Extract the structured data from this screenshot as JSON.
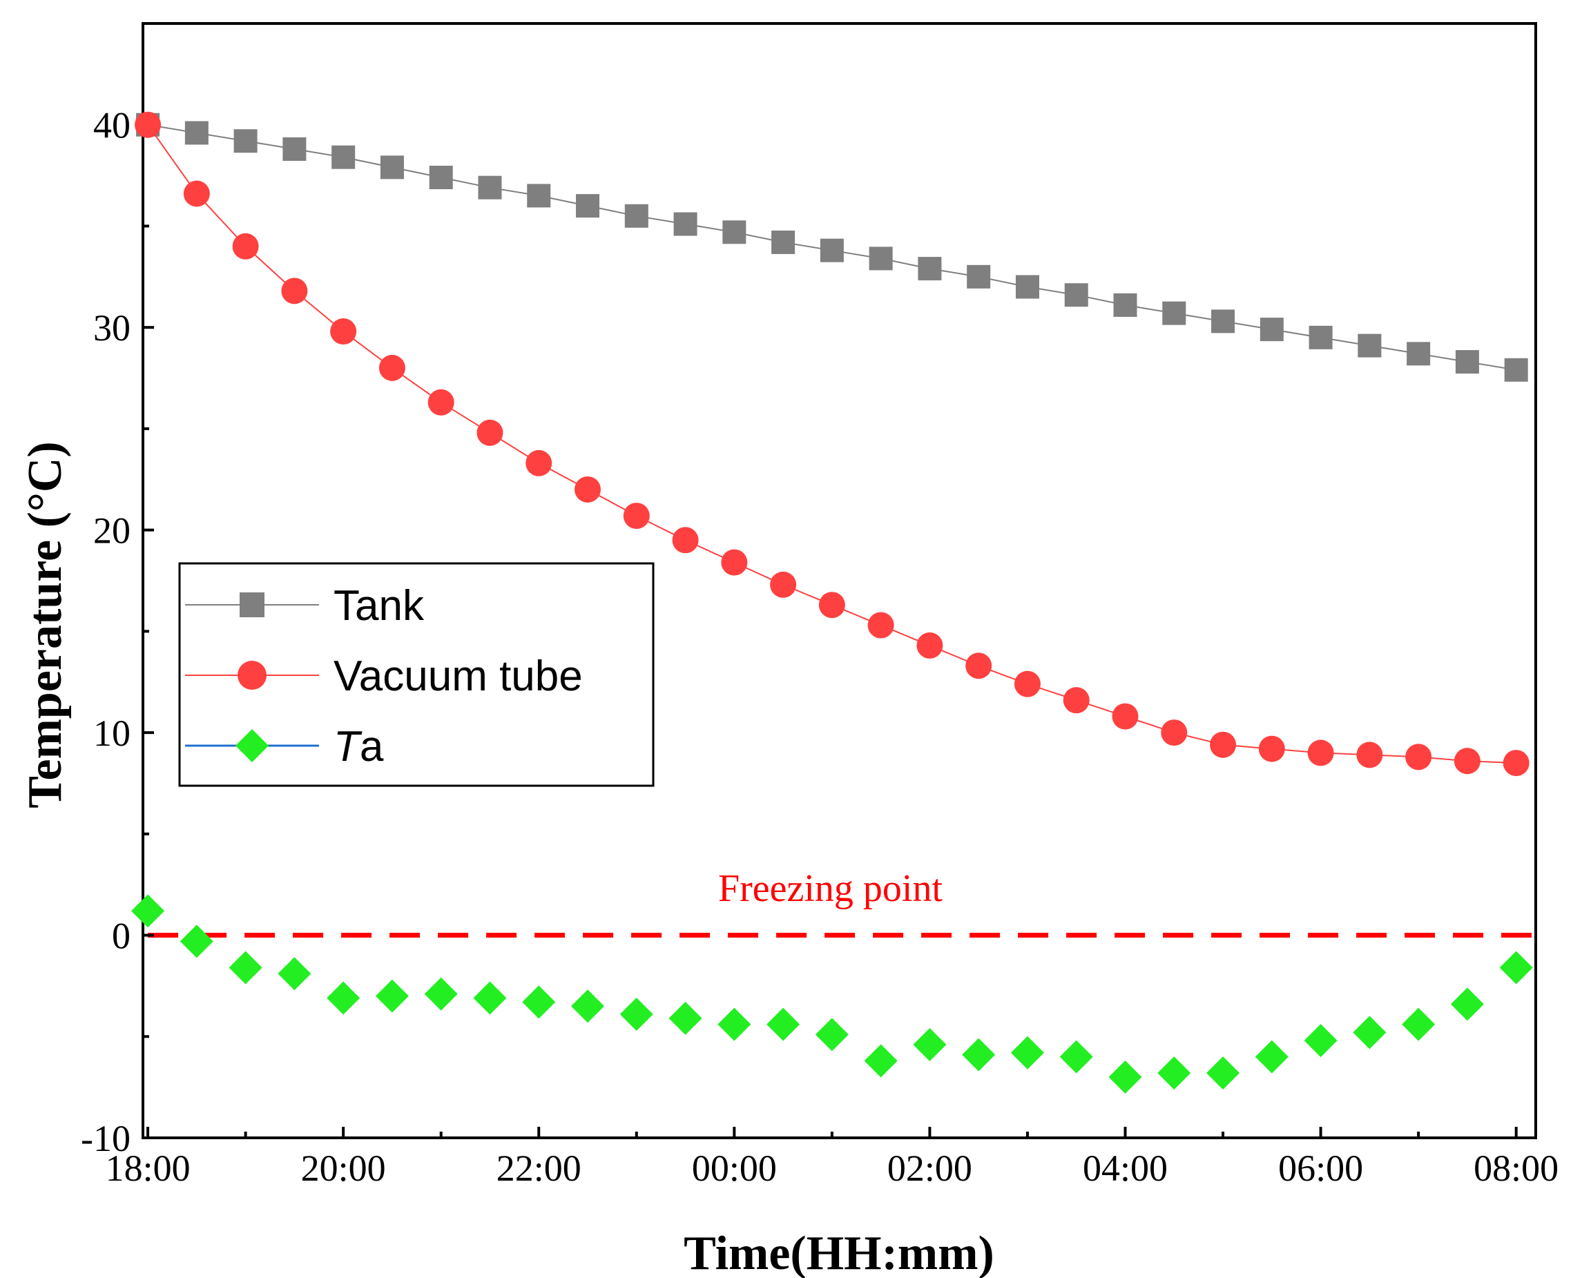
{
  "chart_data": {
    "type": "line",
    "xlabel": "Time(HH:mm)",
    "ylabel": "Temperature (°C)",
    "x_ticks": [
      "18:00",
      "20:00",
      "22:00",
      "00:00",
      "02:00",
      "04:00",
      "06:00",
      "08:00"
    ],
    "x_tick_hours": [
      0,
      2,
      4,
      6,
      8,
      10,
      12,
      14
    ],
    "x_hours_since_start": [
      0,
      0.5,
      1,
      1.5,
      2,
      2.5,
      3,
      3.5,
      4,
      4.5,
      5,
      5.5,
      6,
      6.5,
      7,
      7.5,
      8,
      8.5,
      9,
      9.5,
      10,
      10.5,
      11,
      11.5,
      12,
      12.5,
      13,
      13.5,
      14
    ],
    "xlim": [
      -0.05,
      14.2
    ],
    "ylim": [
      -10,
      45
    ],
    "y_major_ticks": [
      -10,
      0,
      10,
      20,
      30,
      40
    ],
    "y_minor_ticks": [
      -5,
      5,
      15,
      25,
      35
    ],
    "grid": false,
    "legend_position": "middle-left",
    "series": [
      {
        "name": "Tank",
        "marker": "square",
        "color": "#7f7f7f",
        "values": [
          40.0,
          39.6,
          39.2,
          38.8,
          38.4,
          37.9,
          37.4,
          36.9,
          36.5,
          36.0,
          35.5,
          35.1,
          34.7,
          34.2,
          33.8,
          33.4,
          32.9,
          32.5,
          32.0,
          31.6,
          31.1,
          30.7,
          30.3,
          29.9,
          29.5,
          29.1,
          28.7,
          28.3,
          27.9
        ]
      },
      {
        "name": "Vacuum tube",
        "marker": "circle",
        "color": "#ff4040",
        "values": [
          40.0,
          36.6,
          34.0,
          31.8,
          29.8,
          28.0,
          26.3,
          24.8,
          23.3,
          22.0,
          20.7,
          19.5,
          18.4,
          17.3,
          16.3,
          15.3,
          14.3,
          13.3,
          12.4,
          11.6,
          10.8,
          10.0,
          9.4,
          9.2,
          9.0,
          8.9,
          8.8,
          8.6,
          8.5
        ]
      },
      {
        "name_prefix": "T",
        "name_suffix": "a",
        "marker": "diamond",
        "color": "#22ee22",
        "legend_line_color": "#1f6fd0",
        "values": [
          1.2,
          -0.3,
          -1.6,
          -1.9,
          -3.1,
          -3.0,
          -2.9,
          -3.1,
          -3.3,
          -3.5,
          -3.9,
          -4.1,
          -4.4,
          -4.4,
          -4.9,
          -6.2,
          -5.4,
          -5.9,
          -5.8,
          -6.0,
          -7.0,
          -6.8,
          -6.8,
          -6.0,
          -5.2,
          -4.8,
          -4.4,
          -3.4,
          -1.6
        ]
      }
    ],
    "reference_line": {
      "y": 0,
      "label": "Freezing point",
      "color": "#ff0000"
    }
  }
}
